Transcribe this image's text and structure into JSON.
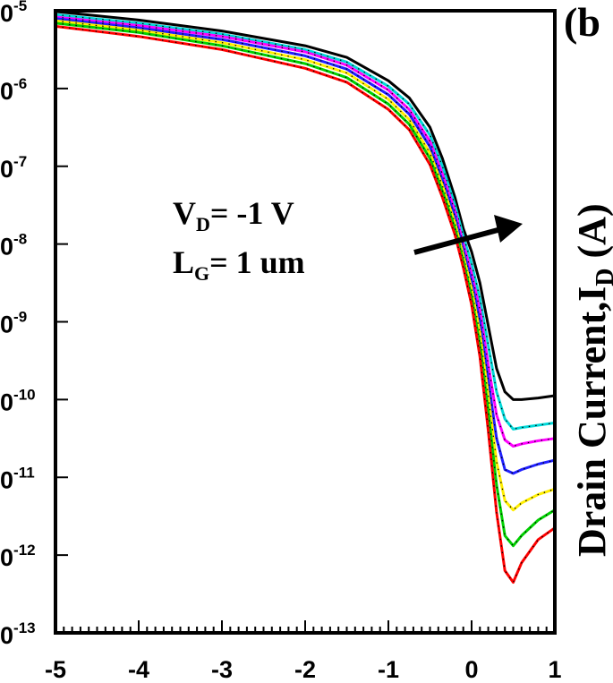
{
  "chart_data": {
    "type": "line",
    "ylabel": "Drain Current,I",
    "ylabel_sub": "D",
    "ylabel_unit": " (A)",
    "panel_label": "(b",
    "yscale": "log",
    "xlim": [
      -5,
      1
    ],
    "ylim_exp": [
      -13,
      -5
    ],
    "x_ticks": [
      "-5",
      "-4",
      "-3",
      "-2",
      "-1",
      "0",
      "1"
    ],
    "y_ticks": [
      {
        "base": "0",
        "exp": "-5",
        "value": -5
      },
      {
        "base": "0",
        "exp": "-6",
        "value": -6
      },
      {
        "base": "0",
        "exp": "-7",
        "value": -7
      },
      {
        "base": "0",
        "exp": "-8",
        "value": -8
      },
      {
        "base": "0",
        "exp": "-9",
        "value": -9
      },
      {
        "base": "0",
        "exp": "-10",
        "value": -10
      },
      {
        "base": "0",
        "exp": "-11",
        "value": -11
      },
      {
        "base": "0",
        "exp": "-12",
        "value": -12
      },
      {
        "base": "0",
        "exp": "-13",
        "value": -13
      }
    ],
    "annotations": [
      {
        "main": "V",
        "sub": "D",
        "rest": "= -1 V"
      },
      {
        "main": "L",
        "sub": "G",
        "rest": "= 1 um"
      }
    ],
    "x": [
      -5,
      -4,
      -3,
      -2,
      -1.5,
      -1,
      -0.75,
      -0.5,
      -0.35,
      -0.2,
      -0.1,
      0,
      0.1,
      0.2,
      0.3,
      0.4,
      0.5,
      0.6,
      0.8,
      1.0
    ],
    "series": [
      {
        "color": "#000000",
        "log10_values": [
          -5.01,
          -5.12,
          -5.26,
          -5.45,
          -5.6,
          -5.9,
          -6.12,
          -6.5,
          -6.9,
          -7.4,
          -7.8,
          -8.1,
          -8.5,
          -9.05,
          -9.6,
          -9.9,
          -10.0,
          -10.0,
          -9.98,
          -9.95
        ]
      },
      {
        "color": "#00d8d8",
        "log10_values": [
          -5.05,
          -5.16,
          -5.3,
          -5.5,
          -5.66,
          -5.97,
          -6.2,
          -6.6,
          -7.0,
          -7.5,
          -7.9,
          -8.25,
          -8.7,
          -9.3,
          -9.9,
          -10.25,
          -10.38,
          -10.36,
          -10.33,
          -10.3
        ]
      },
      {
        "color": "#ff00ff",
        "log10_values": [
          -5.08,
          -5.19,
          -5.33,
          -5.53,
          -5.7,
          -6.02,
          -6.27,
          -6.68,
          -7.1,
          -7.58,
          -8.0,
          -8.38,
          -8.85,
          -9.55,
          -10.2,
          -10.52,
          -10.6,
          -10.57,
          -10.53,
          -10.5
        ]
      },
      {
        "color": "#2020ff",
        "log10_values": [
          -5.1,
          -5.22,
          -5.37,
          -5.58,
          -5.75,
          -6.08,
          -6.33,
          -6.75,
          -7.18,
          -7.65,
          -8.08,
          -8.48,
          -9.0,
          -9.75,
          -10.5,
          -10.9,
          -10.95,
          -10.9,
          -10.83,
          -10.78
        ]
      },
      {
        "color": "#ffee00",
        "log10_values": [
          -5.13,
          -5.25,
          -5.41,
          -5.63,
          -5.8,
          -6.14,
          -6.4,
          -6.83,
          -7.25,
          -7.73,
          -8.15,
          -8.58,
          -9.15,
          -9.95,
          -10.8,
          -11.3,
          -11.42,
          -11.33,
          -11.22,
          -11.15
        ]
      },
      {
        "color": "#00d000",
        "log10_values": [
          -5.16,
          -5.28,
          -5.45,
          -5.68,
          -5.86,
          -6.2,
          -6.46,
          -6.9,
          -7.32,
          -7.8,
          -8.22,
          -8.68,
          -9.3,
          -10.15,
          -11.1,
          -11.75,
          -11.88,
          -11.75,
          -11.55,
          -11.42
        ]
      },
      {
        "color": "#ff0000",
        "log10_values": [
          -5.2,
          -5.33,
          -5.5,
          -5.74,
          -5.92,
          -6.27,
          -6.53,
          -6.98,
          -7.4,
          -7.88,
          -8.3,
          -8.78,
          -9.45,
          -10.4,
          -11.45,
          -12.2,
          -12.35,
          -12.1,
          -11.8,
          -11.65
        ]
      }
    ]
  }
}
